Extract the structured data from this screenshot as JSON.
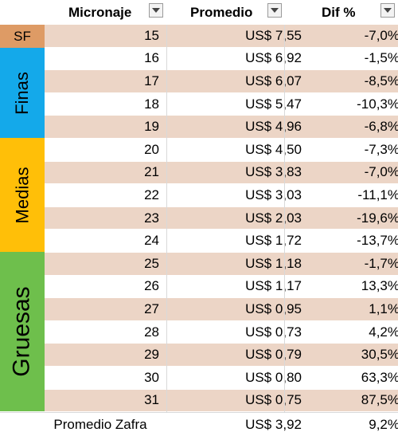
{
  "headers": {
    "micronaje": "Micronaje",
    "promedio": "Promedio",
    "dif": "Dif %"
  },
  "groups": {
    "sf": "SF",
    "finas": "Finas",
    "medias": "Medias",
    "gruesas": "Gruesas"
  },
  "rows": [
    {
      "micronaje": "15",
      "promedio": "US$ 7,55",
      "dif": "-7,0%"
    },
    {
      "micronaje": "16",
      "promedio": "US$ 6,92",
      "dif": "-1,5%"
    },
    {
      "micronaje": "17",
      "promedio": "US$ 6,07",
      "dif": "-8,5%"
    },
    {
      "micronaje": "18",
      "promedio": "US$ 5,47",
      "dif": "-10,3%"
    },
    {
      "micronaje": "19",
      "promedio": "US$ 4,96",
      "dif": "-6,8%"
    },
    {
      "micronaje": "20",
      "promedio": "US$ 4,50",
      "dif": "-7,3%"
    },
    {
      "micronaje": "21",
      "promedio": "US$ 3,83",
      "dif": "-7,0%"
    },
    {
      "micronaje": "22",
      "promedio": "US$ 3,03",
      "dif": "-11,1%"
    },
    {
      "micronaje": "23",
      "promedio": "US$ 2,03",
      "dif": "-19,6%"
    },
    {
      "micronaje": "24",
      "promedio": "US$ 1,72",
      "dif": "-13,7%"
    },
    {
      "micronaje": "25",
      "promedio": "US$ 1,18",
      "dif": "-1,7%"
    },
    {
      "micronaje": "26",
      "promedio": "US$ 1,17",
      "dif": "13,3%"
    },
    {
      "micronaje": "27",
      "promedio": "US$ 0,95",
      "dif": "1,1%"
    },
    {
      "micronaje": "28",
      "promedio": "US$ 0,73",
      "dif": "4,2%"
    },
    {
      "micronaje": "29",
      "promedio": "US$ 0,79",
      "dif": "30,5%"
    },
    {
      "micronaje": "30",
      "promedio": "US$ 0,80",
      "dif": "63,3%"
    },
    {
      "micronaje": "31",
      "promedio": "US$ 0,75",
      "dif": "87,5%"
    }
  ],
  "footer": {
    "label": "Promedio Zafra",
    "promedio": "US$ 3,92",
    "dif": "9,2%"
  },
  "colors": {
    "shaded_row": "#ecd5c6",
    "sf": "#de9b65",
    "finas": "#14a9ea",
    "medias": "#ffbf08",
    "gruesas": "#6ebf4c"
  }
}
